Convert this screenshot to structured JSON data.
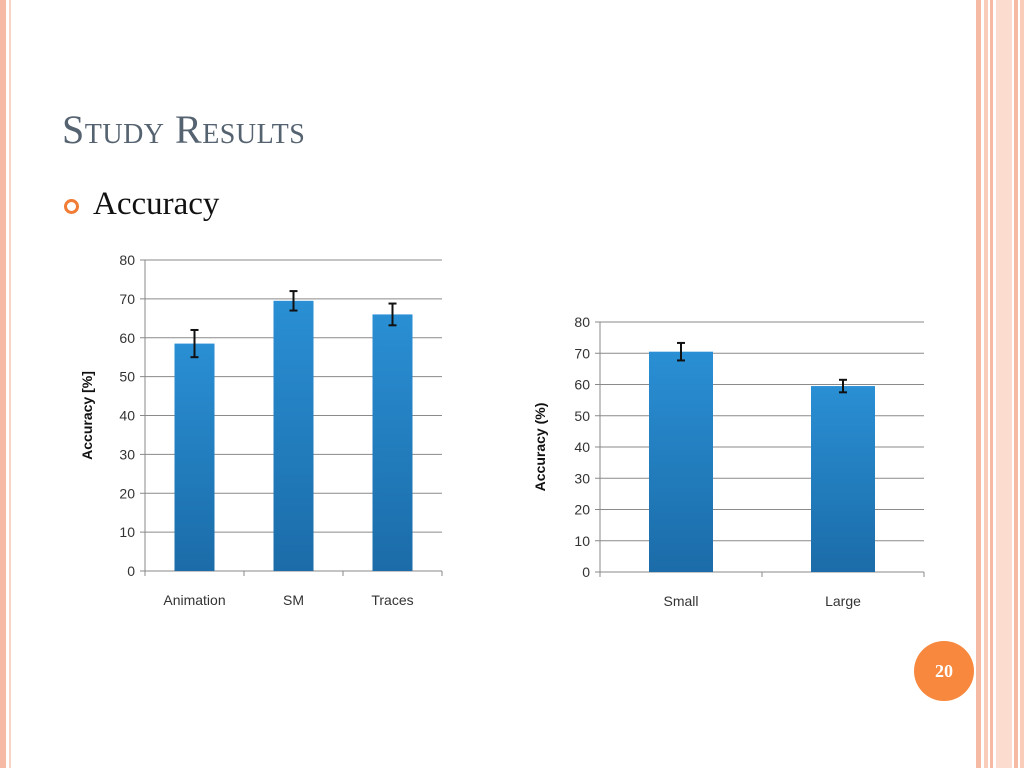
{
  "slide": {
    "title": "Study Results",
    "bullet": "Accuracy",
    "page_number": "20"
  },
  "colors": {
    "accent": "#f7883d",
    "bar_top": "#2a8fd4",
    "bar_bottom": "#1b6ca8",
    "title": "#556270"
  },
  "chart_data": [
    {
      "type": "bar",
      "categories": [
        "Animation",
        "SM",
        "Traces"
      ],
      "values": [
        58.5,
        69.5,
        66
      ],
      "errors": [
        3.5,
        2.5,
        2.8
      ],
      "title": "",
      "xlabel": "",
      "ylabel": "Accuracy [%]",
      "ylim": [
        0,
        80
      ],
      "yticks": [
        0,
        10,
        20,
        30,
        40,
        50,
        60,
        70,
        80
      ],
      "grid": true
    },
    {
      "type": "bar",
      "categories": [
        "Small",
        "Large"
      ],
      "values": [
        70.5,
        59.5
      ],
      "errors": [
        2.8,
        2.0
      ],
      "title": "",
      "xlabel": "",
      "ylabel": "Accuracy (%)",
      "ylim": [
        0,
        80
      ],
      "yticks": [
        0,
        10,
        20,
        30,
        40,
        50,
        60,
        70,
        80
      ],
      "grid": true
    }
  ]
}
